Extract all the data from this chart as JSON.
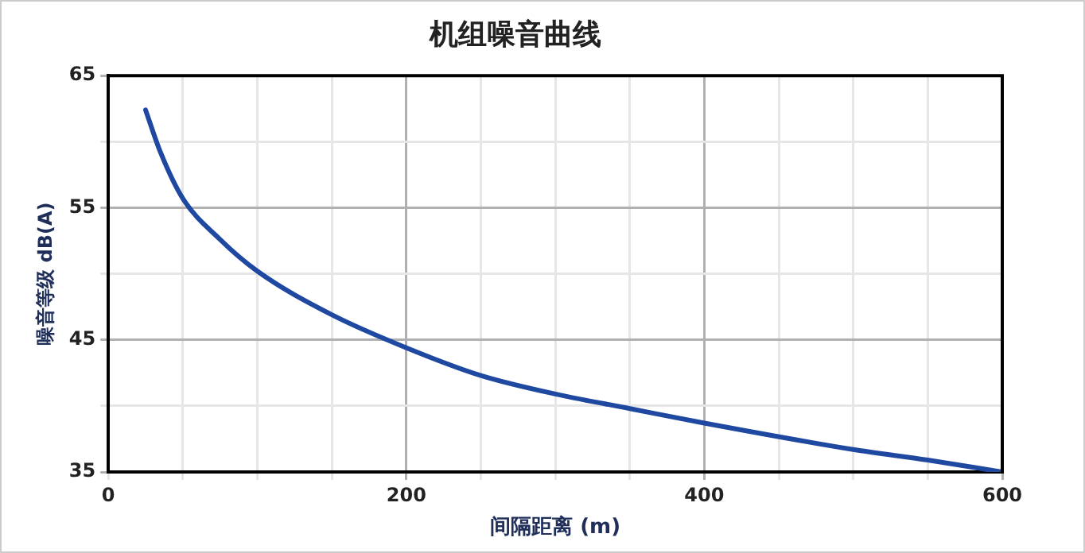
{
  "chart_data": {
    "type": "line",
    "title": "机组噪音曲线",
    "xlabel": "间隔距离 (m)",
    "ylabel": "噪音等级 dB(A)",
    "x": [
      25,
      35,
      50,
      75,
      100,
      150,
      200,
      250,
      300,
      350,
      400,
      500,
      550,
      600
    ],
    "series": [
      {
        "color": "#1f48a0",
        "values": [
          62.4,
          59.2,
          55.7,
          52.6,
          50.2,
          46.9,
          44.4,
          42.3,
          40.9,
          39.8,
          38.7,
          36.7,
          35.9,
          35
        ]
      }
    ],
    "xlim": [
      0,
      600
    ],
    "xticks": [
      0,
      {
        "value": 50,
        "label": null
      },
      {
        "value": 100,
        "label": null
      },
      {
        "value": 150,
        "label": null
      },
      200,
      {
        "value": 250,
        "label": null
      },
      {
        "value": 300,
        "label": null
      },
      {
        "value": 350,
        "label": null
      },
      400,
      {
        "value": 450,
        "label": null
      },
      {
        "value": 500,
        "label": null
      },
      {
        "value": 550,
        "label": null
      },
      600
    ],
    "ylim": [
      35,
      65
    ],
    "yticks": [
      35,
      {
        "value": 40,
        "label": null
      },
      45,
      {
        "value": 50,
        "label": null
      },
      55,
      {
        "value": 60,
        "label": null
      },
      65
    ],
    "grid": true,
    "legend": false,
    "marker": "none",
    "line_style": "solid"
  }
}
